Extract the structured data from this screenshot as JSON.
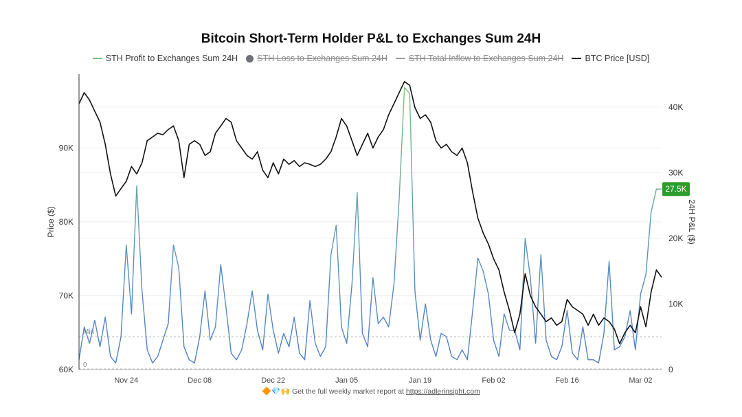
{
  "chart_data": {
    "type": "line",
    "title": "Bitcoin Short-Term Holder P&L to Exchanges Sum 24H",
    "legend": [
      {
        "name": "STH Profit to Exchanges Sum 24H",
        "color": "#7cc47c",
        "style": "line",
        "enabled": true
      },
      {
        "name": "STH Loss to Exchanges Sum 24H",
        "color": "#6e7078",
        "style": "dot",
        "enabled": false
      },
      {
        "name": "STH Total Inflow to  Exchanges Sum 24H",
        "color": "#9aa0aa",
        "style": "line",
        "enabled": false
      },
      {
        "name": "BTC Price [USD]",
        "color": "#111111",
        "style": "line",
        "enabled": true
      }
    ],
    "legend_position": "top-center",
    "x_ticks": [
      "Nov 24",
      "Dec 08",
      "Dec 22",
      "Jan 05",
      "Jan 19",
      "Feb 02",
      "Feb 16",
      "Mar 02"
    ],
    "x_range": [
      "2024-11-15",
      "2025-03-06"
    ],
    "y_left": {
      "label": "Price ($)",
      "range": [
        60000,
        100000
      ],
      "ticks": [
        "60K",
        "70K",
        "80K",
        "90K"
      ]
    },
    "y_right": {
      "label": "24H P&L ($)",
      "range": [
        0,
        45000
      ],
      "ticks": [
        "0",
        "10K",
        "20K",
        "30K",
        "40K"
      ]
    },
    "right_axis_colors": {
      "top": "#7cc47c",
      "bottom": "#4f7fc4"
    },
    "current_value_label": "27.5K",
    "min_line": {
      "label": "Min",
      "value": 5000
    },
    "zero_label": "0",
    "series": [
      {
        "name": "BTC Price [USD]",
        "axis": "left",
        "x": [
          "2024-11-15",
          "2024-11-16",
          "2024-11-17",
          "2024-11-18",
          "2024-11-19",
          "2024-11-20",
          "2024-11-21",
          "2024-11-22",
          "2024-11-23",
          "2024-11-24",
          "2024-11-25",
          "2024-11-26",
          "2024-11-27",
          "2024-11-28",
          "2024-11-29",
          "2024-11-30",
          "2024-12-01",
          "2024-12-02",
          "2024-12-03",
          "2024-12-04",
          "2024-12-05",
          "2024-12-06",
          "2024-12-07",
          "2024-12-08",
          "2024-12-09",
          "2024-12-10",
          "2024-12-11",
          "2024-12-12",
          "2024-12-13",
          "2024-12-14",
          "2024-12-15",
          "2024-12-16",
          "2024-12-17",
          "2024-12-18",
          "2024-12-19",
          "2024-12-20",
          "2024-12-21",
          "2024-12-22",
          "2024-12-23",
          "2024-12-24",
          "2024-12-25",
          "2024-12-26",
          "2024-12-27",
          "2024-12-28",
          "2024-12-29",
          "2024-12-30",
          "2024-12-31",
          "2025-01-01",
          "2025-01-02",
          "2025-01-03",
          "2025-01-04",
          "2025-01-05",
          "2025-01-06",
          "2025-01-07",
          "2025-01-08",
          "2025-01-09",
          "2025-01-10",
          "2025-01-11",
          "2025-01-12",
          "2025-01-13",
          "2025-01-14",
          "2025-01-15",
          "2025-01-16",
          "2025-01-17",
          "2025-01-18",
          "2025-01-19",
          "2025-01-20",
          "2025-01-21",
          "2025-01-22",
          "2025-01-23",
          "2025-01-24",
          "2025-01-25",
          "2025-01-26",
          "2025-01-27",
          "2025-01-28",
          "2025-01-29",
          "2025-01-30",
          "2025-01-31",
          "2025-02-01",
          "2025-02-02",
          "2025-02-03",
          "2025-02-04",
          "2025-02-05",
          "2025-02-06",
          "2025-02-07",
          "2025-02-08",
          "2025-02-09",
          "2025-02-10",
          "2025-02-11",
          "2025-02-12",
          "2025-02-13",
          "2025-02-14",
          "2025-02-15",
          "2025-02-16",
          "2025-02-17",
          "2025-02-18",
          "2025-02-19",
          "2025-02-20",
          "2025-02-21",
          "2025-02-22",
          "2025-02-23",
          "2025-02-24",
          "2025-02-25",
          "2025-02-26",
          "2025-02-27",
          "2025-02-28",
          "2025-03-01",
          "2025-03-02",
          "2025-03-03",
          "2025-03-04",
          "2025-03-05",
          "2025-03-06"
        ],
        "values": [
          96000,
          97500,
          96500,
          95000,
          93500,
          90500,
          86500,
          83500,
          84500,
          85500,
          87500,
          86500,
          88000,
          91000,
          91500,
          92000,
          91800,
          92500,
          93000,
          91000,
          86000,
          90500,
          91000,
          90500,
          89000,
          89500,
          92000,
          93000,
          94000,
          93500,
          91000,
          90000,
          89000,
          88500,
          89500,
          87000,
          86000,
          88000,
          86500,
          88500,
          87800,
          88300,
          87500,
          88000,
          87800,
          87500,
          87800,
          88500,
          89500,
          91500,
          94000,
          93000,
          91000,
          89000,
          90500,
          92000,
          90000,
          91500,
          92500,
          94500,
          96000,
          97500,
          99000,
          98500,
          95500,
          94000,
          94500,
          93500,
          91000,
          90000,
          90500,
          89500,
          89000,
          90000,
          88000,
          84000,
          80500,
          78500,
          77000,
          75000,
          73500,
          70500,
          68000,
          65000,
          67500,
          73000,
          70000,
          68500,
          67500,
          66500,
          67000,
          66000,
          66500,
          69500,
          68500,
          68000,
          67500,
          66000,
          67500,
          66000,
          67000,
          66500,
          65500,
          63500,
          65000,
          66000,
          65000,
          68500,
          65800,
          70500,
          73500,
          72500
        ],
        "color": "#111111"
      },
      {
        "name": "STH Profit to Exchanges Sum 24H",
        "axis": "right",
        "x": [
          "2024-11-15",
          "2024-11-16",
          "2024-11-17",
          "2024-11-18",
          "2024-11-19",
          "2024-11-20",
          "2024-11-21",
          "2024-11-22",
          "2024-11-23",
          "2024-11-24",
          "2024-11-25",
          "2024-11-26",
          "2024-11-27",
          "2024-11-28",
          "2024-11-29",
          "2024-11-30",
          "2024-12-01",
          "2024-12-02",
          "2024-12-03",
          "2024-12-04",
          "2024-12-05",
          "2024-12-06",
          "2024-12-07",
          "2024-12-08",
          "2024-12-09",
          "2024-12-10",
          "2024-12-11",
          "2024-12-12",
          "2024-12-13",
          "2024-12-14",
          "2024-12-15",
          "2024-12-16",
          "2024-12-17",
          "2024-12-18",
          "2024-12-19",
          "2024-12-20",
          "2024-12-21",
          "2024-12-22",
          "2024-12-23",
          "2024-12-24",
          "2024-12-25",
          "2024-12-26",
          "2024-12-27",
          "2024-12-28",
          "2024-12-29",
          "2024-12-30",
          "2024-12-31",
          "2025-01-01",
          "2025-01-02",
          "2025-01-03",
          "2025-01-04",
          "2025-01-05",
          "2025-01-06",
          "2025-01-07",
          "2025-01-08",
          "2025-01-09",
          "2025-01-10",
          "2025-01-11",
          "2025-01-12",
          "2025-01-13",
          "2025-01-14",
          "2025-01-15",
          "2025-01-16",
          "2025-01-17",
          "2025-01-18",
          "2025-01-19",
          "2025-01-20",
          "2025-01-21",
          "2025-01-22",
          "2025-01-23",
          "2025-01-24",
          "2025-01-25",
          "2025-01-26",
          "2025-01-27",
          "2025-01-28",
          "2025-01-29",
          "2025-01-30",
          "2025-01-31",
          "2025-02-01",
          "2025-02-02",
          "2025-02-03",
          "2025-02-04",
          "2025-02-05",
          "2025-02-06",
          "2025-02-07",
          "2025-02-08",
          "2025-02-09",
          "2025-02-10",
          "2025-02-11",
          "2025-02-12",
          "2025-02-13",
          "2025-02-14",
          "2025-02-15",
          "2025-02-16",
          "2025-02-17",
          "2025-02-18",
          "2025-02-19",
          "2025-02-20",
          "2025-02-21",
          "2025-02-22",
          "2025-02-23",
          "2025-02-24",
          "2025-02-25",
          "2025-02-26",
          "2025-02-27",
          "2025-02-28",
          "2025-03-01",
          "2025-03-02",
          "2025-03-03",
          "2025-03-04",
          "2025-03-05",
          "2025-03-06"
        ],
        "values": [
          1500,
          6500,
          4000,
          7500,
          3500,
          8000,
          2000,
          1000,
          5000,
          19000,
          8500,
          28000,
          12000,
          3000,
          1000,
          2000,
          4500,
          7000,
          19000,
          15500,
          3500,
          1500,
          1000,
          5000,
          12000,
          4500,
          6500,
          16000,
          9500,
          2500,
          1500,
          3000,
          7000,
          12000,
          6000,
          3000,
          11500,
          6000,
          2500,
          5500,
          3500,
          8000,
          2500,
          1500,
          10500,
          4000,
          2000,
          3500,
          17500,
          22000,
          6500,
          4000,
          13000,
          27000,
          5500,
          3500,
          14000,
          7000,
          8000,
          6500,
          13000,
          26000,
          43000,
          42000,
          12000,
          4500,
          10000,
          4500,
          2000,
          5500,
          5000,
          2000,
          1500,
          3000,
          1500,
          9000,
          17000,
          15000,
          11500,
          4500,
          2000,
          8500,
          6000,
          6000,
          3000,
          20000,
          14000,
          4000,
          17500,
          4500,
          2000,
          1500,
          3500,
          9000,
          2500,
          1500,
          6500,
          1500,
          1500,
          1000,
          5500,
          16500,
          3000,
          3500,
          5000,
          9000,
          3000,
          11500,
          14500,
          24000,
          27500,
          27500
        ],
        "color": "#7cc47c"
      }
    ]
  },
  "footer": {
    "emojis": "🔶💎🙌",
    "text": "Get the full weekly market report at",
    "link": "https://adlerinsight.com"
  }
}
